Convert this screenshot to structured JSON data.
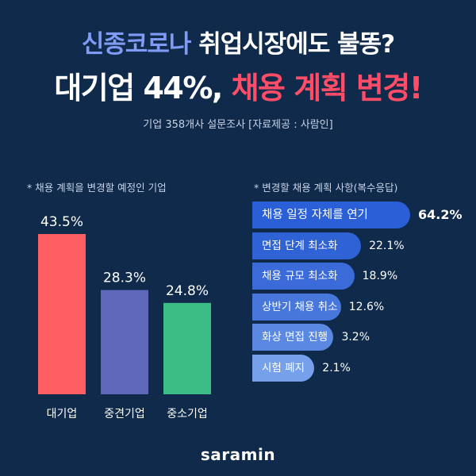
{
  "headline": {
    "line1_part1": "신종코로나",
    "line1_part2": " 취업시장에도 불똥?",
    "line2_part1": "대기업 44%, ",
    "line2_part2": "채용 계획 변경",
    "line2_part3": "!",
    "subtitle": "기업 358개사 설문조사 [자료제공 : 사람인]"
  },
  "colors": {
    "background": "#0f2a4a",
    "highlight_blue": "#7f9bf5",
    "highlight_red": "#ff4d67"
  },
  "chart_data": [
    {
      "type": "bar",
      "title": "* 채용 계획을 변경할 예정인 기업",
      "categories": [
        "대기업",
        "중견기업",
        "중소기업"
      ],
      "values": [
        43.5,
        28.3,
        24.8
      ],
      "value_labels": [
        "43.5%",
        "28.3%",
        "24.8%"
      ],
      "colors": [
        "#ff5f63",
        "#5e67b8",
        "#3dbd86"
      ],
      "ylim": [
        0,
        45
      ],
      "grid": false,
      "xlabel": "",
      "ylabel": ""
    },
    {
      "type": "bar",
      "orientation": "horizontal",
      "title": "* 변경할 채용 계획 사항(복수응답)",
      "categories": [
        "채용 일정 자체를 연기",
        "면접 단계 최소화",
        "채용 규모 최소화",
        "상반기 채용 취소",
        "화상 면접 진행",
        "시험 폐지"
      ],
      "values": [
        64.2,
        22.1,
        18.9,
        12.6,
        3.2,
        2.1
      ],
      "value_labels": [
        "64.2%",
        "22.1%",
        "18.9%",
        "12.6%",
        "3.2%",
        "2.1%"
      ],
      "colors": [
        "#2a5fd8",
        "#2f62d4",
        "#3b6bd8",
        "#4877db",
        "#5b89e2",
        "#76a0ea"
      ],
      "grid": false,
      "xlabel": "",
      "ylabel": ""
    }
  ],
  "brand": {
    "logo_text": "saramin"
  }
}
